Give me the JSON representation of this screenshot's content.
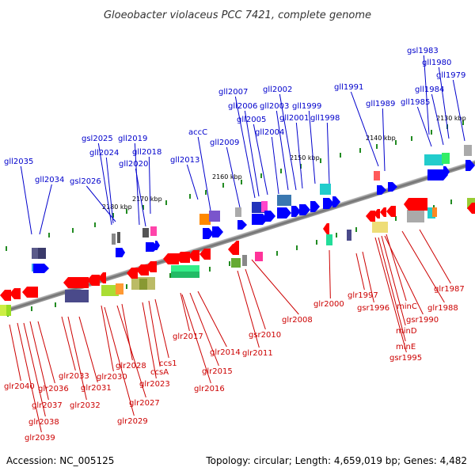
{
  "title": "Gloeobacter violaceus PCC 7421, complete genome",
  "accession": "Accession: NC_005125",
  "topology": "Topology: circular; Length: 4,659,019 bp; Genes: 4,482",
  "colors": {
    "forward_strand": "#0000ff",
    "reverse_strand": "#ff0000",
    "top_label": "#0000cc",
    "bottom_label": "#cc0000",
    "backbone": "#808080",
    "tick": "#228b22"
  },
  "ticks": [
    {
      "label": "2180 kbp"
    },
    {
      "label": "2170 kbp"
    },
    {
      "label": "2160 kbp"
    },
    {
      "label": "2150 kbp"
    },
    {
      "label": "2140 kbp"
    },
    {
      "label": "2130 kbp"
    }
  ],
  "top_labels": [
    "gsl1983",
    "gll1980",
    "gll1979",
    "gll1984",
    "gll1985",
    "gll1991",
    "gll1989",
    "gll2002",
    "gll2007",
    "gll2006",
    "gll2003",
    "gll1999",
    "gll2005",
    "gll2001",
    "gll1998",
    "gll2004",
    "accC",
    "gll2009",
    "gsl2025",
    "gll2019",
    "gll2024",
    "gll2018",
    "gll2020",
    "gll2013",
    "gll2035",
    "gll2034",
    "gsl2026"
  ],
  "bottom_labels": [
    "glr2000",
    "glr1997",
    "gsr1996",
    "glr1987",
    "glr1988",
    "minC",
    "gsr1990",
    "minD",
    "minE",
    "gsr1995",
    "glr2008",
    "gsr2010",
    "glr2011",
    "glr2017",
    "glr2014",
    "glr2015",
    "glr2016",
    "ccs1",
    "ccsA",
    "glr2023",
    "glr2028",
    "glr2030",
    "glr2027",
    "glr2033",
    "glr2031",
    "glr2029",
    "glr2032",
    "glr2040",
    "glr2036",
    "glr2037",
    "glr2038",
    "glr2039"
  ]
}
